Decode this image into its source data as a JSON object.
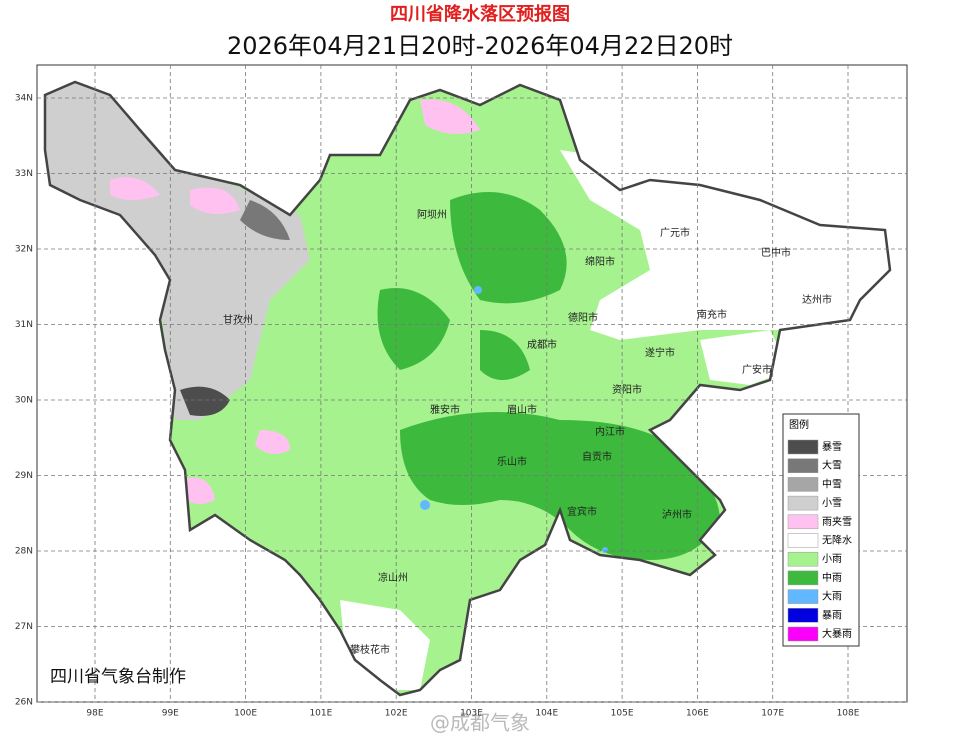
{
  "title": "四川省降水落区预报图",
  "subtitle": "2026年04月21日20时-2026年04月22日20时",
  "lat_labels": [
    "34N",
    "33N",
    "32N",
    "31N",
    "30N",
    "29N",
    "28N",
    "27N",
    "26N"
  ],
  "lon_labels": [
    "98E",
    "99E",
    "100E",
    "101E",
    "102E",
    "103E",
    "104E",
    "105E",
    "106E",
    "107E",
    "108E"
  ],
  "cities": [
    "阿坝州",
    "广元市",
    "巴中市",
    "绵阳市",
    "达州市",
    "甘孜州",
    "德阳市",
    "南充市",
    "成都市",
    "遂宁市",
    "广安市",
    "资阳市",
    "雅安市",
    "眉山市",
    "内江市",
    "乐山市",
    "自贡市",
    "宜宾市",
    "泸州市",
    "凉山州",
    "攀枝花市"
  ],
  "legend": {
    "title": "图例",
    "items": [
      {
        "label": "暴雪",
        "color": "#4d4d4d"
      },
      {
        "label": "大雪",
        "color": "#787878"
      },
      {
        "label": "中雪",
        "color": "#a6a6a6"
      },
      {
        "label": "小雪",
        "color": "#cfcfcf"
      },
      {
        "label": "雨夹雪",
        "color": "#ffc2f0"
      },
      {
        "label": "无降水",
        "color": "#ffffff"
      },
      {
        "label": "小雨",
        "color": "#a6f28f"
      },
      {
        "label": "中雨",
        "color": "#3dba3d"
      },
      {
        "label": "大雨",
        "color": "#61b8ff"
      },
      {
        "label": "暴雨",
        "color": "#0000e1"
      },
      {
        "label": "大暴雨",
        "color": "#fa00fa"
      }
    ]
  },
  "credit": "四川省气象台制作",
  "watermark": "@成都气象"
}
